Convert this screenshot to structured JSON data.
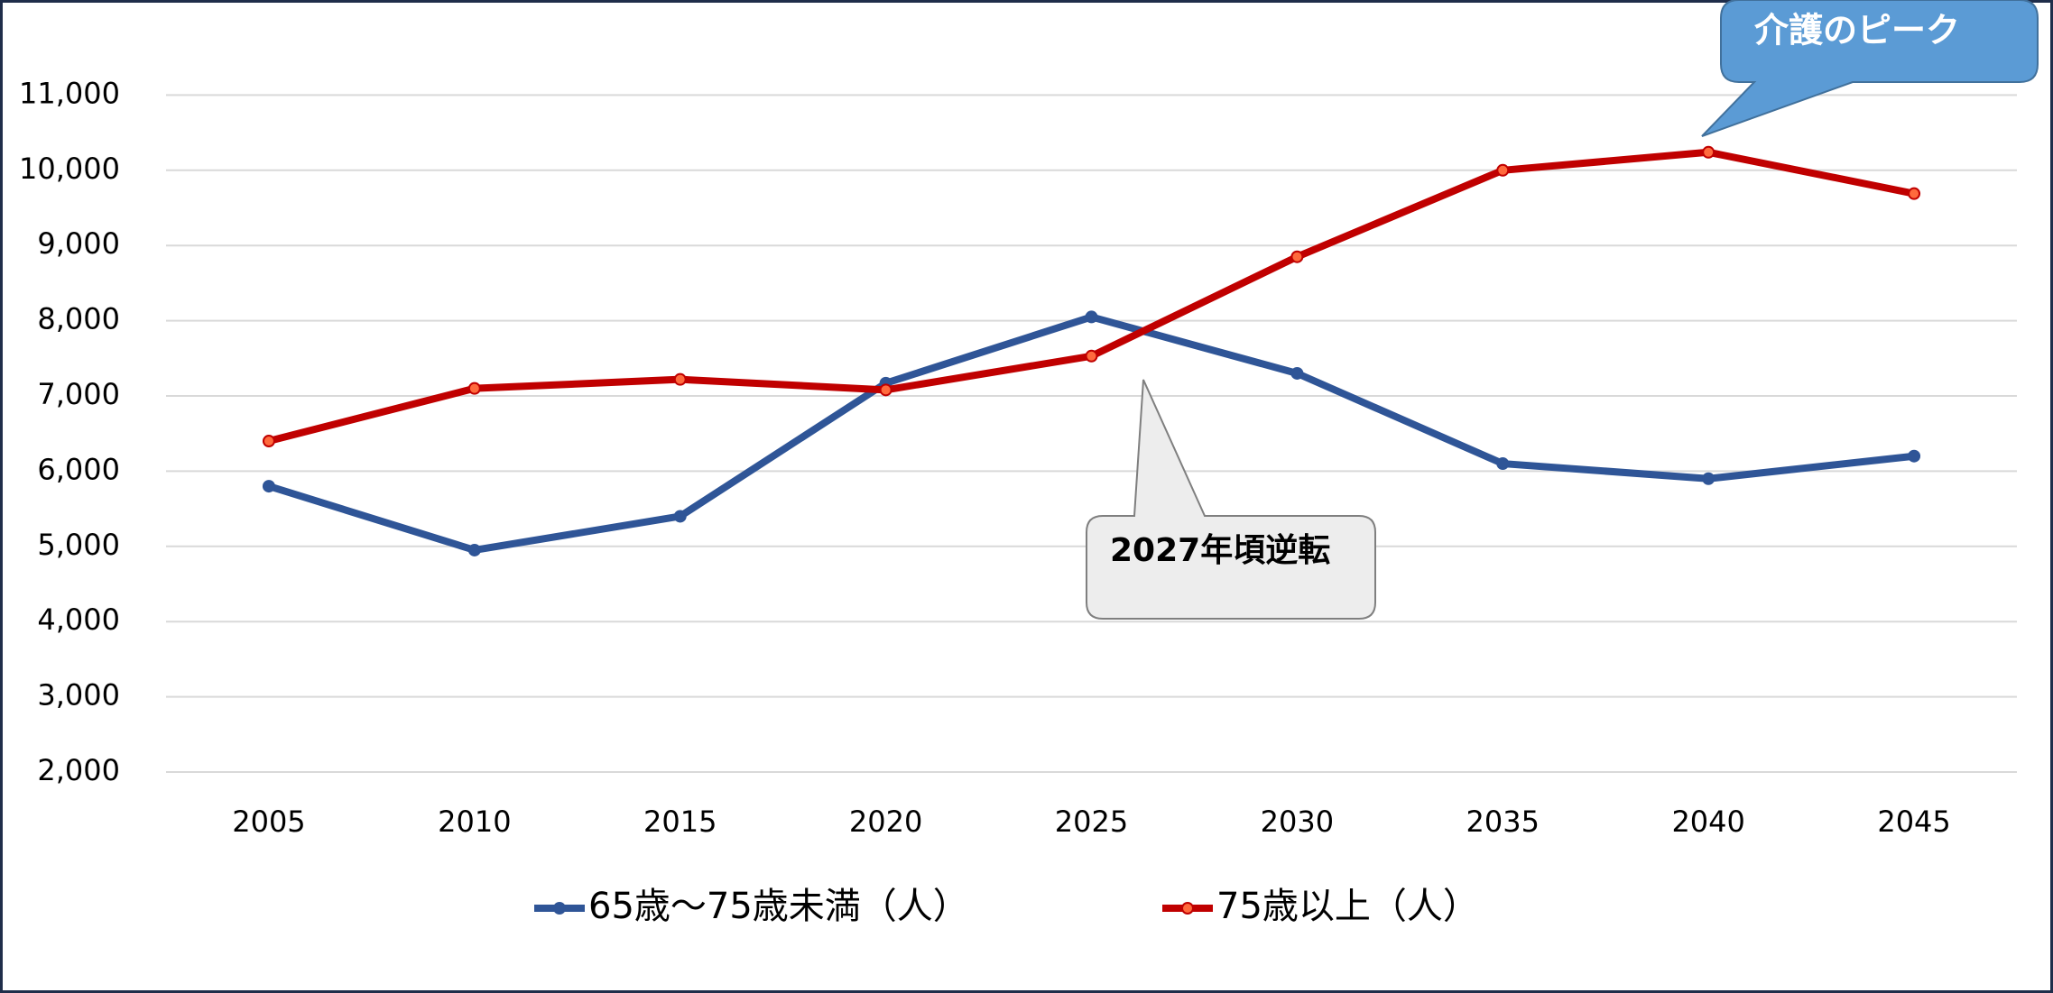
{
  "chart_data": {
    "type": "line",
    "categories": [
      "2005",
      "2010",
      "2015",
      "2020",
      "2025",
      "2030",
      "2035",
      "2040",
      "2045"
    ],
    "series": [
      {
        "name": "65歳〜75歳未満（人）",
        "color": "#2f5597",
        "marker_fill": "#2f5597",
        "values": [
          5800,
          4950,
          5400,
          7170,
          8050,
          7300,
          6100,
          5900,
          6200
        ]
      },
      {
        "name": "75歳以上（人）",
        "color": "#c00000",
        "marker_fill": "#ff6a3d",
        "values": [
          6400,
          7100,
          7220,
          7080,
          7530,
          8850,
          10000,
          10240,
          9690
        ]
      }
    ],
    "ylim": [
      2000,
      12000
    ],
    "yticks": [
      {
        "value": 2000,
        "label": "2,000"
      },
      {
        "value": 3000,
        "label": "3,000"
      },
      {
        "value": 4000,
        "label": "4,000"
      },
      {
        "value": 5000,
        "label": "5,000"
      },
      {
        "value": 6000,
        "label": "6,000"
      },
      {
        "value": 7000,
        "label": "7,000"
      },
      {
        "value": 8000,
        "label": "8,000"
      },
      {
        "value": 9000,
        "label": "9,000"
      },
      {
        "value": 10000,
        "label": "10,000"
      },
      {
        "value": 11000,
        "label": "11,000"
      }
    ],
    "grid": true,
    "legend": "bottom",
    "annotations": [
      {
        "text": "介護のピーク"
      },
      {
        "text": "2027年頃逆転"
      }
    ]
  }
}
